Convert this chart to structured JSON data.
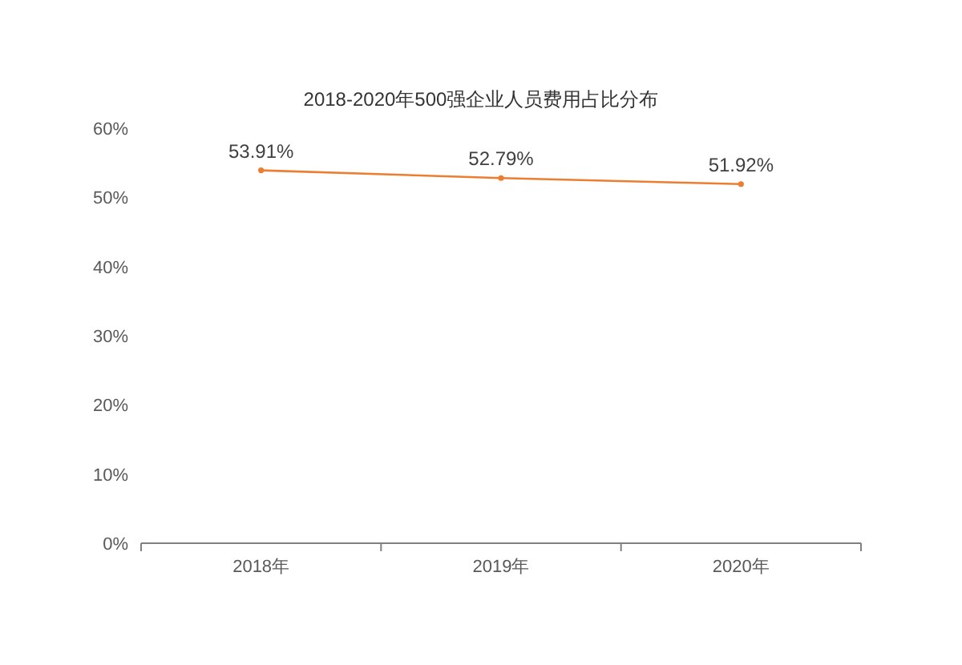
{
  "chart_data": {
    "type": "line",
    "title": "2018-2020年500强企业人员费用占比分布",
    "categories": [
      "2018年",
      "2019年",
      "2020年"
    ],
    "series": [
      {
        "color": "#ed7d31",
        "values": [
          53.91,
          52.79,
          51.92
        ],
        "value_labels": [
          "53.91%",
          "52.79%",
          "51.92%"
        ]
      }
    ],
    "marker": "circle",
    "ylim": [
      0,
      60
    ],
    "yticks": [
      {
        "value": 0,
        "label": "0%"
      },
      {
        "value": 10,
        "label": "10%"
      },
      {
        "value": 20,
        "label": "20%"
      },
      {
        "value": 30,
        "label": "30%"
      },
      {
        "value": 40,
        "label": "40%"
      },
      {
        "value": 50,
        "label": "50%"
      },
      {
        "value": 60,
        "label": "60%"
      }
    ]
  }
}
